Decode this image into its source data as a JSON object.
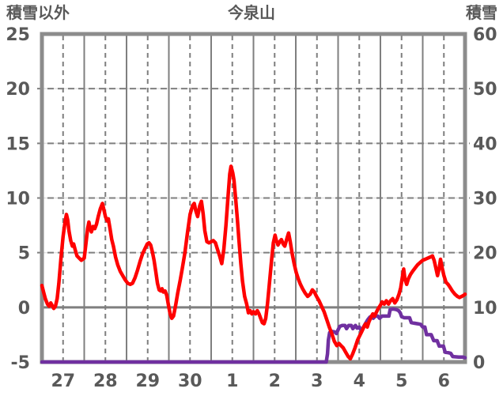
{
  "header": {
    "left_axis_title": "積雪以外",
    "chart_title": "今泉山",
    "right_axis_title": "積雪"
  },
  "chart_data": {
    "type": "line",
    "title": "今泉山",
    "left_axis": {
      "label": "積雪以外",
      "min": -5,
      "max": 25,
      "ticks": [
        25,
        20,
        15,
        10,
        5,
        0,
        -5
      ]
    },
    "right_axis": {
      "label": "積雪",
      "min": 0,
      "max": 60,
      "ticks": [
        60,
        50,
        40,
        30,
        20,
        10,
        0
      ]
    },
    "x_axis": {
      "tick_labels": [
        "27",
        "28",
        "29",
        "30",
        "1",
        "2",
        "3",
        "4",
        "5",
        "6"
      ],
      "days": 10
    },
    "grid": {
      "vertical_solid_at_day_bounds": true,
      "vertical_dashed_at_noon": true,
      "horizontal_dashed_every_5": true,
      "zero_line_solid": true
    },
    "colors": {
      "other_than_snow": "#FF0000",
      "snow_depth": "#7030A0",
      "border": "#8C8C8C",
      "grid_dark": "#7F7F7F",
      "grid_light": "#E3E3E3",
      "text": "#595959"
    },
    "series": [
      {
        "name": "積雪以外",
        "axis": "left",
        "color": "#FF0000",
        "points": [
          [
            0,
            2.0
          ],
          [
            0.04,
            1.4
          ],
          [
            0.08,
            0.8
          ],
          [
            0.13,
            0.3
          ],
          [
            0.17,
            0.1
          ],
          [
            0.21,
            0.4
          ],
          [
            0.25,
            0.1
          ],
          [
            0.28,
            -0.1
          ],
          [
            0.32,
            0.1
          ],
          [
            0.36,
            0.8
          ],
          [
            0.4,
            2.2
          ],
          [
            0.45,
            4.5
          ],
          [
            0.5,
            6.5
          ],
          [
            0.55,
            7.9
          ],
          [
            0.58,
            8.5
          ],
          [
            0.61,
            8.0
          ],
          [
            0.64,
            7.0
          ],
          [
            0.68,
            6.1
          ],
          [
            0.72,
            5.6
          ],
          [
            0.75,
            5.8
          ],
          [
            0.79,
            5.2
          ],
          [
            0.83,
            4.7
          ],
          [
            0.88,
            4.5
          ],
          [
            0.93,
            4.3
          ],
          [
            1.0,
            4.5
          ],
          [
            1.04,
            5.8
          ],
          [
            1.08,
            7.2
          ],
          [
            1.11,
            7.8
          ],
          [
            1.14,
            7.2
          ],
          [
            1.17,
            6.9
          ],
          [
            1.21,
            7.4
          ],
          [
            1.25,
            7.2
          ],
          [
            1.29,
            7.6
          ],
          [
            1.33,
            8.3
          ],
          [
            1.38,
            9.0
          ],
          [
            1.43,
            9.5
          ],
          [
            1.46,
            9.0
          ],
          [
            1.5,
            8.3
          ],
          [
            1.54,
            7.9
          ],
          [
            1.57,
            8.1
          ],
          [
            1.61,
            7.2
          ],
          [
            1.65,
            6.2
          ],
          [
            1.69,
            5.6
          ],
          [
            1.74,
            4.6
          ],
          [
            1.79,
            3.9
          ],
          [
            1.85,
            3.3
          ],
          [
            1.91,
            2.9
          ],
          [
            1.97,
            2.5
          ],
          [
            2.03,
            2.2
          ],
          [
            2.09,
            2.1
          ],
          [
            2.14,
            2.2
          ],
          [
            2.2,
            2.7
          ],
          [
            2.26,
            3.4
          ],
          [
            2.32,
            4.2
          ],
          [
            2.38,
            4.9
          ],
          [
            2.44,
            5.4
          ],
          [
            2.49,
            5.8
          ],
          [
            2.53,
            5.9
          ],
          [
            2.57,
            5.7
          ],
          [
            2.61,
            5.1
          ],
          [
            2.65,
            4.3
          ],
          [
            2.69,
            3.3
          ],
          [
            2.73,
            2.2
          ],
          [
            2.77,
            1.6
          ],
          [
            2.81,
            1.5
          ],
          [
            2.84,
            1.7
          ],
          [
            2.87,
            1.4
          ],
          [
            2.91,
            1.5
          ],
          [
            2.95,
            1.1
          ],
          [
            2.99,
            0.2
          ],
          [
            3.03,
            -0.6
          ],
          [
            3.07,
            -1.0
          ],
          [
            3.11,
            -0.8
          ],
          [
            3.16,
            0.2
          ],
          [
            3.21,
            1.3
          ],
          [
            3.27,
            2.5
          ],
          [
            3.32,
            3.6
          ],
          [
            3.38,
            5.0
          ],
          [
            3.44,
            6.8
          ],
          [
            3.5,
            8.5
          ],
          [
            3.56,
            9.3
          ],
          [
            3.6,
            9.5
          ],
          [
            3.64,
            8.8
          ],
          [
            3.68,
            8.3
          ],
          [
            3.73,
            9.3
          ],
          [
            3.77,
            9.7
          ],
          [
            3.81,
            8.6
          ],
          [
            3.85,
            7.0
          ],
          [
            3.9,
            6.0
          ],
          [
            3.95,
            5.9
          ],
          [
            4.0,
            6.0
          ],
          [
            4.05,
            6.1
          ],
          [
            4.1,
            5.9
          ],
          [
            4.15,
            5.3
          ],
          [
            4.2,
            4.7
          ],
          [
            4.25,
            4.0
          ],
          [
            4.3,
            5.3
          ],
          [
            4.35,
            7.5
          ],
          [
            4.4,
            10.2
          ],
          [
            4.44,
            12.2
          ],
          [
            4.47,
            12.9
          ],
          [
            4.51,
            12.3
          ],
          [
            4.54,
            11.6
          ],
          [
            4.58,
            9.9
          ],
          [
            4.62,
            8.0
          ],
          [
            4.66,
            6.0
          ],
          [
            4.7,
            4.0
          ],
          [
            4.74,
            2.4
          ],
          [
            4.79,
            1.0
          ],
          [
            4.84,
            0.3
          ],
          [
            4.88,
            -0.5
          ],
          [
            4.92,
            -0.3
          ],
          [
            4.96,
            -0.6
          ],
          [
            5.0,
            -0.4
          ],
          [
            5.05,
            -0.6
          ],
          [
            5.09,
            -0.3
          ],
          [
            5.13,
            -0.6
          ],
          [
            5.17,
            -1.0
          ],
          [
            5.21,
            -1.4
          ],
          [
            5.25,
            -1.5
          ],
          [
            5.29,
            -1.0
          ],
          [
            5.33,
            0.3
          ],
          [
            5.38,
            2.3
          ],
          [
            5.43,
            4.4
          ],
          [
            5.47,
            5.9
          ],
          [
            5.51,
            6.6
          ],
          [
            5.54,
            6.1
          ],
          [
            5.58,
            5.7
          ],
          [
            5.62,
            6.0
          ],
          [
            5.66,
            6.2
          ],
          [
            5.7,
            5.8
          ],
          [
            5.74,
            5.6
          ],
          [
            5.79,
            6.3
          ],
          [
            5.83,
            6.8
          ],
          [
            5.87,
            6.0
          ],
          [
            5.91,
            5.0
          ],
          [
            5.96,
            4.0
          ],
          [
            6.01,
            3.2
          ],
          [
            6.06,
            2.6
          ],
          [
            6.11,
            2.1
          ],
          [
            6.16,
            1.7
          ],
          [
            6.22,
            1.3
          ],
          [
            6.28,
            1.0
          ],
          [
            6.34,
            1.2
          ],
          [
            6.39,
            1.6
          ],
          [
            6.44,
            1.4
          ],
          [
            6.49,
            1.0
          ],
          [
            6.55,
            0.6
          ],
          [
            6.61,
            0.1
          ],
          [
            6.67,
            -0.4
          ],
          [
            6.73,
            -1.1
          ],
          [
            6.79,
            -1.8
          ],
          [
            6.85,
            -2.4
          ],
          [
            6.91,
            -3.1
          ],
          [
            6.97,
            -3.5
          ],
          [
            7.02,
            -3.3
          ],
          [
            7.07,
            -3.5
          ],
          [
            7.12,
            -3.7
          ],
          [
            7.18,
            -4.1
          ],
          [
            7.24,
            -4.5
          ],
          [
            7.29,
            -4.7
          ],
          [
            7.34,
            -4.3
          ],
          [
            7.4,
            -3.7
          ],
          [
            7.46,
            -3.0
          ],
          [
            7.51,
            -2.6
          ],
          [
            7.56,
            -2.2
          ],
          [
            7.61,
            -1.8
          ],
          [
            7.65,
            -1.5
          ],
          [
            7.69,
            -1.8
          ],
          [
            7.73,
            -1.3
          ],
          [
            7.78,
            -0.9
          ],
          [
            7.82,
            -0.6
          ],
          [
            7.86,
            -0.8
          ],
          [
            7.91,
            -0.4
          ],
          [
            7.95,
            -0.1
          ],
          [
            8.0,
            0.2
          ],
          [
            8.04,
            0.5
          ],
          [
            8.09,
            0.3
          ],
          [
            8.14,
            0.6
          ],
          [
            8.19,
            0.3
          ],
          [
            8.24,
            0.6
          ],
          [
            8.29,
            0.8
          ],
          [
            8.34,
            0.4
          ],
          [
            8.39,
            0.7
          ],
          [
            8.44,
            1.2
          ],
          [
            8.48,
            1.8
          ],
          [
            8.52,
            2.8
          ],
          [
            8.55,
            3.5
          ],
          [
            8.58,
            2.6
          ],
          [
            8.62,
            2.1
          ],
          [
            8.66,
            2.6
          ],
          [
            8.71,
            3.0
          ],
          [
            8.76,
            3.3
          ],
          [
            8.82,
            3.6
          ],
          [
            8.88,
            3.9
          ],
          [
            8.94,
            4.1
          ],
          [
            9.0,
            4.3
          ],
          [
            9.06,
            4.4
          ],
          [
            9.12,
            4.5
          ],
          [
            9.18,
            4.6
          ],
          [
            9.23,
            4.7
          ],
          [
            9.27,
            4.3
          ],
          [
            9.31,
            3.6
          ],
          [
            9.35,
            2.9
          ],
          [
            9.39,
            3.6
          ],
          [
            9.42,
            4.4
          ],
          [
            9.46,
            3.6
          ],
          [
            9.5,
            2.9
          ],
          [
            9.55,
            2.3
          ],
          [
            9.6,
            2.1
          ],
          [
            9.65,
            1.8
          ],
          [
            9.7,
            1.5
          ],
          [
            9.76,
            1.2
          ],
          [
            9.82,
            1.0
          ],
          [
            9.87,
            0.9
          ],
          [
            9.92,
            1.0
          ],
          [
            9.97,
            1.1
          ],
          [
            10.0,
            1.2
          ]
        ]
      },
      {
        "name": "積雪",
        "axis": "right",
        "color": "#7030A0",
        "points": [
          [
            0,
            0
          ],
          [
            6.72,
            0
          ],
          [
            6.75,
            1.5
          ],
          [
            6.77,
            4.0
          ],
          [
            6.8,
            5.4
          ],
          [
            6.86,
            5.6
          ],
          [
            6.92,
            5.5
          ],
          [
            6.96,
            5.2
          ],
          [
            7.0,
            5.9
          ],
          [
            7.04,
            6.5
          ],
          [
            7.1,
            6.7
          ],
          [
            7.16,
            6.7
          ],
          [
            7.2,
            6.1
          ],
          [
            7.25,
            6.7
          ],
          [
            7.31,
            6.7
          ],
          [
            7.35,
            6.1
          ],
          [
            7.41,
            6.7
          ],
          [
            7.45,
            6.2
          ],
          [
            7.5,
            6.4
          ],
          [
            7.54,
            5.8
          ],
          [
            7.58,
            6.1
          ],
          [
            7.62,
            6.7
          ],
          [
            7.66,
            7.2
          ],
          [
            7.7,
            7.7
          ],
          [
            7.75,
            8.2
          ],
          [
            7.79,
            8.4
          ],
          [
            7.83,
            8.0
          ],
          [
            7.88,
            8.4
          ],
          [
            7.94,
            8.4
          ],
          [
            7.98,
            8.0
          ],
          [
            8.04,
            8.4
          ],
          [
            8.12,
            8.4
          ],
          [
            8.2,
            8.4
          ],
          [
            8.23,
            9.6
          ],
          [
            8.3,
            9.7
          ],
          [
            8.37,
            9.6
          ],
          [
            8.43,
            9.4
          ],
          [
            8.47,
            9.0
          ],
          [
            8.5,
            8.3
          ],
          [
            8.56,
            8.1
          ],
          [
            8.62,
            8.1
          ],
          [
            8.69,
            8.1
          ],
          [
            8.73,
            7.2
          ],
          [
            8.8,
            7.1
          ],
          [
            8.88,
            7.0
          ],
          [
            8.95,
            6.9
          ],
          [
            9.0,
            6.4
          ],
          [
            9.05,
            6.4
          ],
          [
            9.09,
            5.0
          ],
          [
            9.2,
            5.0
          ],
          [
            9.26,
            3.9
          ],
          [
            9.34,
            3.9
          ],
          [
            9.39,
            2.9
          ],
          [
            9.49,
            2.9
          ],
          [
            9.53,
            1.8
          ],
          [
            9.6,
            1.7
          ],
          [
            9.66,
            1.6
          ],
          [
            9.71,
            1.0
          ],
          [
            9.85,
            0.9
          ],
          [
            9.95,
            0.9
          ],
          [
            10.0,
            0.8
          ]
        ]
      }
    ]
  }
}
